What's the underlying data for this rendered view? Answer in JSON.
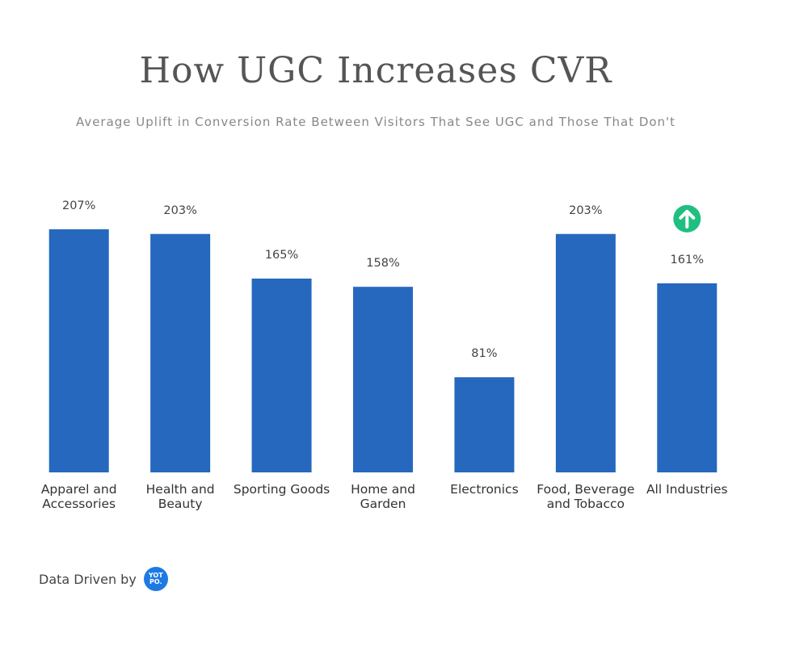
{
  "chart_data": {
    "type": "bar",
    "title": "How UGC Increases CVR",
    "subtitle": "Average Uplift in Conversion Rate Between Visitors That See UGC and Those That Don't",
    "categories": [
      "Apparel and Accessories",
      "Health and Beauty",
      "Sporting Goods",
      "Home and Garden",
      "Electronics",
      "Food, Beverage and Tobacco",
      "All Industries"
    ],
    "values": [
      207,
      203,
      165,
      158,
      81,
      203,
      161
    ],
    "value_labels": [
      "207%",
      "203%",
      "165%",
      "158%",
      "81%",
      "203%",
      "161%"
    ],
    "color": "#2568be",
    "ylim": [
      0,
      220
    ]
  },
  "footer": {
    "text": "Data Driven by",
    "logo": [
      "YOT",
      "PO."
    ]
  }
}
